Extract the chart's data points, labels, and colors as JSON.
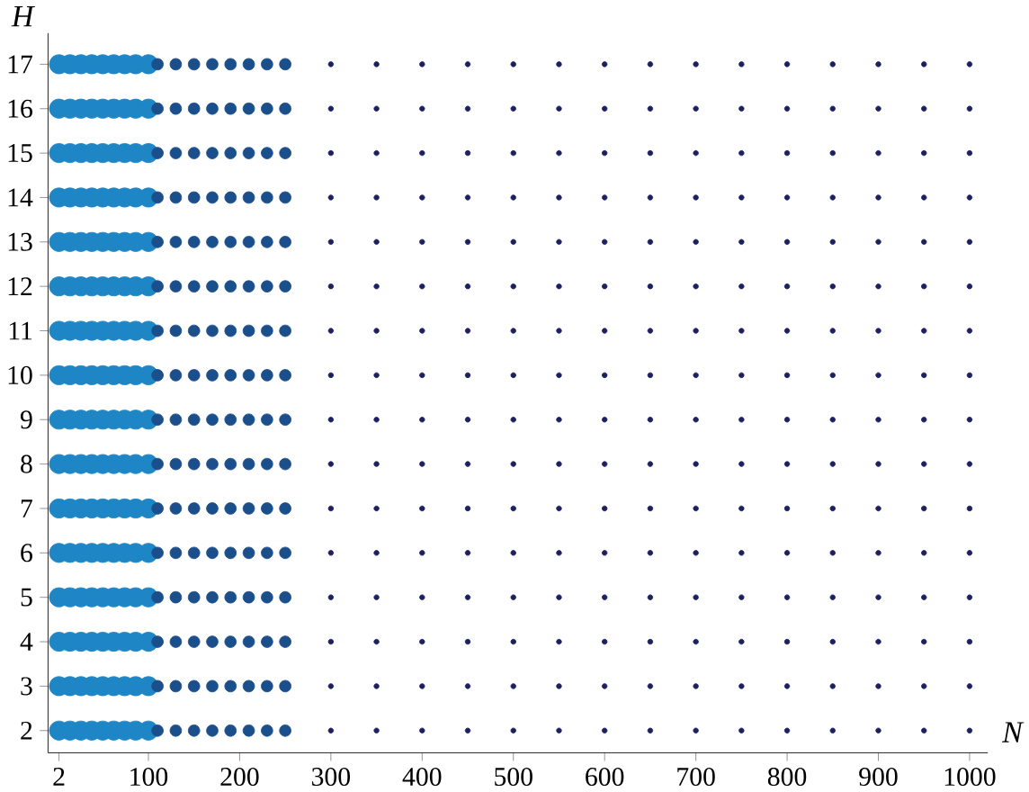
{
  "chart_data": {
    "type": "scatter",
    "xlabel": "N",
    "ylabel": "H",
    "marker": "circle",
    "xlim": [
      -10,
      1020
    ],
    "ylim": [
      1.5,
      17.7
    ],
    "xticks": [
      2,
      100,
      200,
      300,
      400,
      500,
      600,
      700,
      800,
      900,
      1000
    ],
    "yticks": [
      2,
      3,
      4,
      5,
      6,
      7,
      8,
      9,
      10,
      11,
      12,
      13,
      14,
      15,
      16,
      17
    ],
    "grid": false,
    "series": [
      {
        "color": "#1f86c6",
        "x": [
          2,
          14,
          26,
          38,
          50,
          62,
          74,
          86,
          100,
          2,
          14,
          26,
          38,
          50,
          62,
          74,
          86,
          100,
          2,
          14,
          26,
          38,
          50,
          62,
          74,
          86,
          100,
          2,
          14,
          26,
          38,
          50,
          62,
          74,
          86,
          100,
          2,
          14,
          26,
          38,
          50,
          62,
          74,
          86,
          100,
          2,
          14,
          26,
          38,
          50,
          62,
          74,
          86,
          100,
          2,
          14,
          26,
          38,
          50,
          62,
          74,
          86,
          100,
          2,
          14,
          26,
          38,
          50,
          62,
          74,
          86,
          100,
          2,
          14,
          26,
          38,
          50,
          62,
          74,
          86,
          100,
          2,
          14,
          26,
          38,
          50,
          62,
          74,
          86,
          100,
          2,
          14,
          26,
          38,
          50,
          62,
          74,
          86,
          100,
          2,
          14,
          26,
          38,
          50,
          62,
          74,
          86,
          100,
          2,
          14,
          26,
          38,
          50,
          62,
          74,
          86,
          100,
          2,
          14,
          26,
          38,
          50,
          62,
          74,
          86,
          100,
          2,
          14,
          26,
          38,
          50,
          62,
          74,
          86,
          100,
          2,
          14,
          26,
          38,
          50,
          62,
          74,
          86,
          100
        ],
        "values": [
          2,
          2,
          2,
          2,
          2,
          2,
          2,
          2,
          2,
          3,
          3,
          3,
          3,
          3,
          3,
          3,
          3,
          3,
          4,
          4,
          4,
          4,
          4,
          4,
          4,
          4,
          4,
          5,
          5,
          5,
          5,
          5,
          5,
          5,
          5,
          5,
          6,
          6,
          6,
          6,
          6,
          6,
          6,
          6,
          6,
          7,
          7,
          7,
          7,
          7,
          7,
          7,
          7,
          7,
          8,
          8,
          8,
          8,
          8,
          8,
          8,
          8,
          8,
          9,
          9,
          9,
          9,
          9,
          9,
          9,
          9,
          9,
          10,
          10,
          10,
          10,
          10,
          10,
          10,
          10,
          10,
          11,
          11,
          11,
          11,
          11,
          11,
          11,
          11,
          11,
          12,
          12,
          12,
          12,
          12,
          12,
          12,
          12,
          12,
          13,
          13,
          13,
          13,
          13,
          13,
          13,
          13,
          13,
          14,
          14,
          14,
          14,
          14,
          14,
          14,
          14,
          14,
          15,
          15,
          15,
          15,
          15,
          15,
          15,
          15,
          15,
          16,
          16,
          16,
          16,
          16,
          16,
          16,
          16,
          16,
          17,
          17,
          17,
          17,
          17,
          17,
          17,
          17,
          17
        ]
      },
      {
        "color": "#1b4f8c",
        "x": [
          110,
          130,
          150,
          170,
          190,
          210,
          230,
          250,
          110,
          130,
          150,
          170,
          190,
          210,
          230,
          250,
          110,
          130,
          150,
          170,
          190,
          210,
          230,
          250,
          110,
          130,
          150,
          170,
          190,
          210,
          230,
          250,
          110,
          130,
          150,
          170,
          190,
          210,
          230,
          250,
          110,
          130,
          150,
          170,
          190,
          210,
          230,
          250,
          110,
          130,
          150,
          170,
          190,
          210,
          230,
          250,
          110,
          130,
          150,
          170,
          190,
          210,
          230,
          250,
          110,
          130,
          150,
          170,
          190,
          210,
          230,
          250,
          110,
          130,
          150,
          170,
          190,
          210,
          230,
          250,
          110,
          130,
          150,
          170,
          190,
          210,
          230,
          250,
          110,
          130,
          150,
          170,
          190,
          210,
          230,
          250,
          110,
          130,
          150,
          170,
          190,
          210,
          230,
          250,
          110,
          130,
          150,
          170,
          190,
          210,
          230,
          250,
          110,
          130,
          150,
          170,
          190,
          210,
          230,
          250,
          110,
          130,
          150,
          170,
          190,
          210,
          230,
          250
        ],
        "values": [
          2,
          2,
          2,
          2,
          2,
          2,
          2,
          2,
          3,
          3,
          3,
          3,
          3,
          3,
          3,
          3,
          4,
          4,
          4,
          4,
          4,
          4,
          4,
          4,
          5,
          5,
          5,
          5,
          5,
          5,
          5,
          5,
          6,
          6,
          6,
          6,
          6,
          6,
          6,
          6,
          7,
          7,
          7,
          7,
          7,
          7,
          7,
          7,
          8,
          8,
          8,
          8,
          8,
          8,
          8,
          8,
          9,
          9,
          9,
          9,
          9,
          9,
          9,
          9,
          10,
          10,
          10,
          10,
          10,
          10,
          10,
          10,
          11,
          11,
          11,
          11,
          11,
          11,
          11,
          11,
          12,
          12,
          12,
          12,
          12,
          12,
          12,
          12,
          13,
          13,
          13,
          13,
          13,
          13,
          13,
          13,
          14,
          14,
          14,
          14,
          14,
          14,
          14,
          14,
          15,
          15,
          15,
          15,
          15,
          15,
          15,
          15,
          16,
          16,
          16,
          16,
          16,
          16,
          16,
          16,
          17,
          17,
          17,
          17,
          17,
          17,
          17,
          17
        ]
      },
      {
        "color": "#1c2060",
        "x": [
          300,
          350,
          400,
          450,
          500,
          550,
          600,
          650,
          700,
          750,
          800,
          850,
          900,
          950,
          1000,
          300,
          350,
          400,
          450,
          500,
          550,
          600,
          650,
          700,
          750,
          800,
          850,
          900,
          950,
          1000,
          300,
          350,
          400,
          450,
          500,
          550,
          600,
          650,
          700,
          750,
          800,
          850,
          900,
          950,
          1000,
          300,
          350,
          400,
          450,
          500,
          550,
          600,
          650,
          700,
          750,
          800,
          850,
          900,
          950,
          1000,
          300,
          350,
          400,
          450,
          500,
          550,
          600,
          650,
          700,
          750,
          800,
          850,
          900,
          950,
          1000,
          300,
          350,
          400,
          450,
          500,
          550,
          600,
          650,
          700,
          750,
          800,
          850,
          900,
          950,
          1000,
          300,
          350,
          400,
          450,
          500,
          550,
          600,
          650,
          700,
          750,
          800,
          850,
          900,
          950,
          1000,
          300,
          350,
          400,
          450,
          500,
          550,
          600,
          650,
          700,
          750,
          800,
          850,
          900,
          950,
          1000,
          300,
          350,
          400,
          450,
          500,
          550,
          600,
          650,
          700,
          750,
          800,
          850,
          900,
          950,
          1000,
          300,
          350,
          400,
          450,
          500,
          550,
          600,
          650,
          700,
          750,
          800,
          850,
          900,
          950,
          1000,
          300,
          350,
          400,
          450,
          500,
          550,
          600,
          650,
          700,
          750,
          800,
          850,
          900,
          950,
          1000,
          300,
          350,
          400,
          450,
          500,
          550,
          600,
          650,
          700,
          750,
          800,
          850,
          900,
          950,
          1000,
          300,
          350,
          400,
          450,
          500,
          550,
          600,
          650,
          700,
          750,
          800,
          850,
          900,
          950,
          1000,
          300,
          350,
          400,
          450,
          500,
          550,
          600,
          650,
          700,
          750,
          800,
          850,
          900,
          950,
          1000,
          300,
          350,
          400,
          450,
          500,
          550,
          600,
          650,
          700,
          750,
          800,
          850,
          900,
          950,
          1000,
          300,
          350,
          400,
          450,
          500,
          550,
          600,
          650,
          700,
          750,
          800,
          850,
          900,
          950,
          1000
        ],
        "values": [
          2,
          2,
          2,
          2,
          2,
          2,
          2,
          2,
          2,
          2,
          2,
          2,
          2,
          2,
          2,
          3,
          3,
          3,
          3,
          3,
          3,
          3,
          3,
          3,
          3,
          3,
          3,
          3,
          3,
          3,
          4,
          4,
          4,
          4,
          4,
          4,
          4,
          4,
          4,
          4,
          4,
          4,
          4,
          4,
          4,
          5,
          5,
          5,
          5,
          5,
          5,
          5,
          5,
          5,
          5,
          5,
          5,
          5,
          5,
          5,
          6,
          6,
          6,
          6,
          6,
          6,
          6,
          6,
          6,
          6,
          6,
          6,
          6,
          6,
          6,
          7,
          7,
          7,
          7,
          7,
          7,
          7,
          7,
          7,
          7,
          7,
          7,
          7,
          7,
          7,
          8,
          8,
          8,
          8,
          8,
          8,
          8,
          8,
          8,
          8,
          8,
          8,
          8,
          8,
          8,
          9,
          9,
          9,
          9,
          9,
          9,
          9,
          9,
          9,
          9,
          9,
          9,
          9,
          9,
          9,
          10,
          10,
          10,
          10,
          10,
          10,
          10,
          10,
          10,
          10,
          10,
          10,
          10,
          10,
          10,
          11,
          11,
          11,
          11,
          11,
          11,
          11,
          11,
          11,
          11,
          11,
          11,
          11,
          11,
          11,
          12,
          12,
          12,
          12,
          12,
          12,
          12,
          12,
          12,
          12,
          12,
          12,
          12,
          12,
          12,
          13,
          13,
          13,
          13,
          13,
          13,
          13,
          13,
          13,
          13,
          13,
          13,
          13,
          13,
          13,
          14,
          14,
          14,
          14,
          14,
          14,
          14,
          14,
          14,
          14,
          14,
          14,
          14,
          14,
          14,
          15,
          15,
          15,
          15,
          15,
          15,
          15,
          15,
          15,
          15,
          15,
          15,
          15,
          15,
          15,
          16,
          16,
          16,
          16,
          16,
          16,
          16,
          16,
          16,
          16,
          16,
          16,
          16,
          16,
          16,
          17,
          17,
          17,
          17,
          17,
          17,
          17,
          17,
          17,
          17,
          17,
          17,
          17,
          17,
          17
        ]
      }
    ]
  }
}
